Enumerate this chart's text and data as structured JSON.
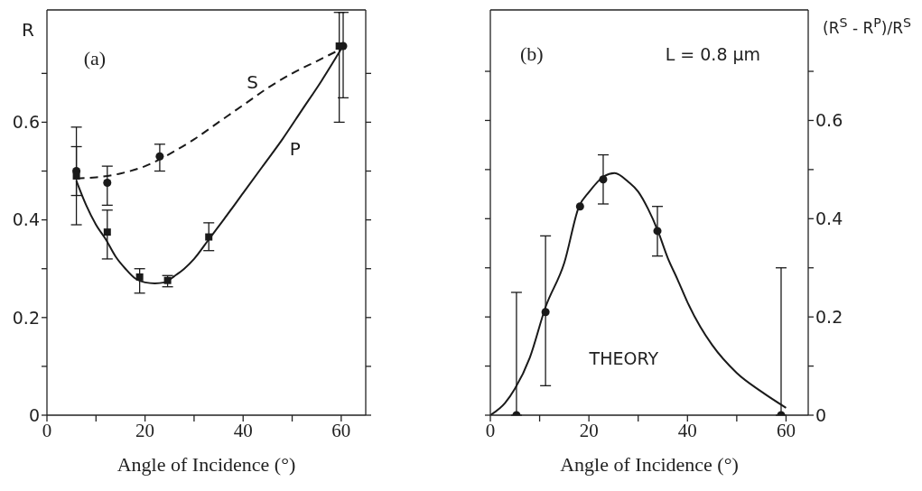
{
  "chart_data": [
    {
      "type": "line",
      "xlabel": "Angle of Incidence (°)",
      "ylabel": "R",
      "annotations": [
        "(a)"
      ],
      "xlim": [
        0,
        65
      ],
      "xticks": [
        0,
        {
          "value": 10,
          "label": null
        },
        20,
        {
          "value": 30,
          "label": null
        },
        40,
        {
          "value": 50,
          "label": null
        },
        60
      ],
      "ylim": [
        0,
        0.83
      ],
      "yticks": [
        0,
        {
          "value": 0.1,
          "label": null
        },
        0.2,
        {
          "value": 0.3,
          "label": null
        },
        0.4,
        {
          "value": 0.5,
          "label": null
        },
        0.6,
        {
          "value": 0.7,
          "label": null
        }
      ],
      "series": [
        {
          "name": "S",
          "color": "#1a1a1a",
          "line_style": "dashed",
          "marker": "none",
          "x": [
            6,
            10,
            15,
            20,
            25,
            30,
            35,
            40,
            45,
            50,
            55,
            60
          ],
          "values": [
            0.485,
            0.487,
            0.495,
            0.51,
            0.535,
            0.565,
            0.6,
            0.635,
            0.67,
            0.7,
            0.725,
            0.75
          ]
        },
        {
          "name": "P",
          "color": "#1a1a1a",
          "line_style": "solid",
          "marker": "none",
          "x": [
            6,
            8,
            10,
            12,
            14,
            16,
            18,
            20,
            22,
            24,
            26,
            28,
            30,
            33,
            36,
            40,
            44,
            48,
            52,
            56,
            60
          ],
          "values": [
            0.48,
            0.43,
            0.39,
            0.36,
            0.325,
            0.3,
            0.28,
            0.272,
            0.27,
            0.272,
            0.285,
            0.3,
            0.32,
            0.36,
            0.4,
            0.455,
            0.51,
            0.565,
            0.625,
            0.685,
            0.75
          ]
        },
        {
          "type": "scatter",
          "color": "#1a1a1a",
          "marker": "circle",
          "x": [
            6,
            12.3,
            23,
            60.4
          ],
          "values": [
            0.5,
            0.476,
            0.53,
            0.756
          ],
          "errors": [
            [
              0.45,
              0.55
            ],
            [
              0.43,
              0.51
            ],
            [
              0.5,
              0.555
            ],
            [
              0.65,
              0.825
            ]
          ]
        },
        {
          "type": "scatter",
          "color": "#1a1a1a",
          "marker": "square",
          "x": [
            6,
            12.3,
            18.9,
            24.6,
            33,
            59.6
          ],
          "values": [
            0.49,
            0.375,
            0.283,
            0.276,
            0.365,
            0.756
          ],
          "errors": [
            [
              0.39,
              0.59
            ],
            [
              0.32,
              0.42
            ],
            [
              0.25,
              0.3
            ],
            [
              0.263,
              0.286
            ],
            [
              0.337,
              0.394
            ],
            [
              0.6,
              0.825
            ]
          ]
        }
      ]
    },
    {
      "type": "line",
      "xlabel": "Angle of Incidence (°)",
      "y2label": "(R$^{S}$ - R$^{P}$)/R$^{S}$",
      "annotations": [
        "(b)",
        "L = 0.8 μm",
        "THEORY"
      ],
      "xlim": [
        0,
        64.5
      ],
      "xticks": [
        0,
        {
          "value": 10,
          "label": null
        },
        20,
        {
          "value": 30,
          "label": null
        },
        40,
        {
          "value": 50,
          "label": null
        },
        60
      ],
      "y2lim": [
        0,
        0.825
      ],
      "y2ticks": [
        0,
        {
          "value": 0.1,
          "label": null
        },
        0.2,
        {
          "value": 0.3,
          "label": null
        },
        0.4,
        {
          "value": 0.5,
          "label": null
        },
        0.6,
        {
          "value": 0.7,
          "label": null
        }
      ],
      "series": [
        {
          "axis": "y2",
          "color": "#1a1a1a",
          "line_style": "solid",
          "marker": "none",
          "x": [
            0,
            3,
            5,
            8,
            11.2,
            15,
            18,
            20,
            23,
            25.2,
            28,
            30,
            32,
            34,
            36,
            38,
            40,
            42.6,
            45,
            50,
            55,
            60
          ],
          "values": [
            0,
            0.025,
            0.054,
            0.117,
            0.22,
            0.31,
            0.425,
            0.454,
            0.486,
            0.493,
            0.475,
            0.455,
            0.42,
            0.375,
            0.32,
            0.276,
            0.23,
            0.18,
            0.143,
            0.086,
            0.048,
            0.015
          ]
        },
        {
          "type": "scatter",
          "axis": "y2",
          "color": "#1a1a1a",
          "marker": "circle",
          "x": [
            5.3,
            11.2,
            18.2,
            22.9,
            33.9,
            59
          ],
          "values": [
            0,
            0.21,
            0.425,
            0.48,
            0.375,
            0
          ],
          "errors": [
            [
              0,
              0.25
            ],
            [
              0.06,
              0.365
            ],
            null,
            [
              0.43,
              0.53
            ],
            [
              0.324,
              0.425
            ],
            [
              0,
              0.3
            ]
          ]
        }
      ]
    }
  ]
}
